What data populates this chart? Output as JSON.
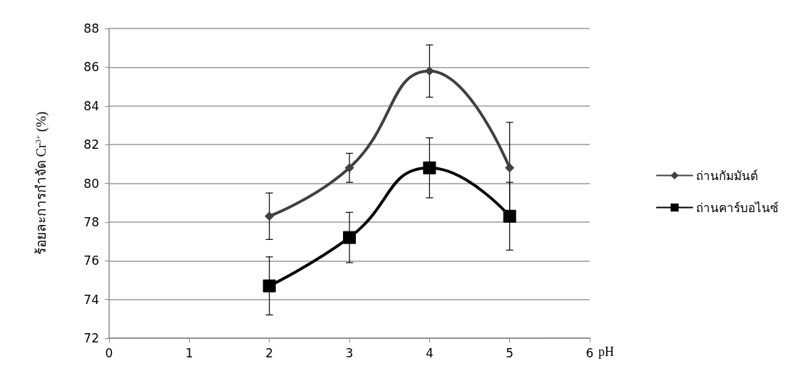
{
  "chart_data": {
    "type": "line",
    "xlabel": "pH",
    "ylabel": "ร้อยละการกำจัด Cr$^{3+}$ (%)",
    "xlim": [
      0,
      6
    ],
    "xticks": [
      0,
      1,
      2,
      3,
      4,
      5,
      6
    ],
    "ylim": [
      72,
      88
    ],
    "yticks": [
      72,
      74,
      76,
      78,
      80,
      82,
      84,
      86,
      88
    ],
    "grid": "y",
    "legend": "right",
    "line_style": "solid",
    "series": [
      {
        "name": "ถ่านกัมมันต์",
        "color": "#404040",
        "marker": "diamond",
        "x": [
          2,
          3,
          4,
          5
        ],
        "values": [
          78.3,
          80.8,
          85.8,
          80.8
        ],
        "errors": [
          1.2,
          0.75,
          1.35,
          2.35
        ]
      },
      {
        "name": "ถ่านคาร์บอไนซ์",
        "color": "#000000",
        "marker": "square",
        "x": [
          2,
          3,
          4,
          5
        ],
        "values": [
          74.7,
          77.2,
          80.8,
          78.3
        ],
        "errors": [
          1.5,
          1.3,
          1.55,
          1.75
        ]
      }
    ]
  }
}
